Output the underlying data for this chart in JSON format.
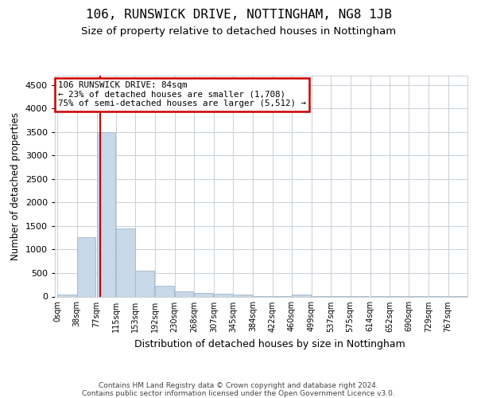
{
  "title": "106, RUNSWICK DRIVE, NOTTINGHAM, NG8 1JB",
  "subtitle": "Size of property relative to detached houses in Nottingham",
  "xlabel": "Distribution of detached houses by size in Nottingham",
  "ylabel": "Number of detached properties",
  "bin_labels": [
    "0sqm",
    "38sqm",
    "77sqm",
    "115sqm",
    "153sqm",
    "192sqm",
    "230sqm",
    "268sqm",
    "307sqm",
    "345sqm",
    "384sqm",
    "422sqm",
    "460sqm",
    "499sqm",
    "537sqm",
    "575sqm",
    "614sqm",
    "652sqm",
    "690sqm",
    "729sqm",
    "767sqm"
  ],
  "bin_edges": [
    0,
    38,
    77,
    115,
    153,
    192,
    230,
    268,
    307,
    345,
    384,
    422,
    460,
    499,
    537,
    575,
    614,
    652,
    690,
    729,
    767
  ],
  "bar_values": [
    50,
    1260,
    3500,
    1450,
    550,
    230,
    115,
    80,
    60,
    50,
    5,
    5,
    50,
    5,
    5,
    5,
    5,
    5,
    5,
    5,
    5
  ],
  "bar_color": "#c8d8e8",
  "bar_edge_color": "#a0b8cc",
  "property_size": 84,
  "red_line_color": "#cc0000",
  "annotation_line1": "106 RUNSWICK DRIVE: 84sqm",
  "annotation_line2": "← 23% of detached houses are smaller (1,708)",
  "annotation_line3": "75% of semi-detached houses are larger (5,512) →",
  "annotation_box_color": "#ffffff",
  "annotation_box_edge_color": "#cc0000",
  "ylim": [
    0,
    4700
  ],
  "yticks": [
    0,
    500,
    1000,
    1500,
    2000,
    2500,
    3000,
    3500,
    4000,
    4500
  ],
  "title_fontsize": 11.5,
  "subtitle_fontsize": 9.5,
  "xlabel_fontsize": 9,
  "ylabel_fontsize": 8.5,
  "footer_text": "Contains HM Land Registry data © Crown copyright and database right 2024.\nContains public sector information licensed under the Open Government Licence v3.0.",
  "bg_color": "#ffffff",
  "grid_color": "#c8d0d8"
}
